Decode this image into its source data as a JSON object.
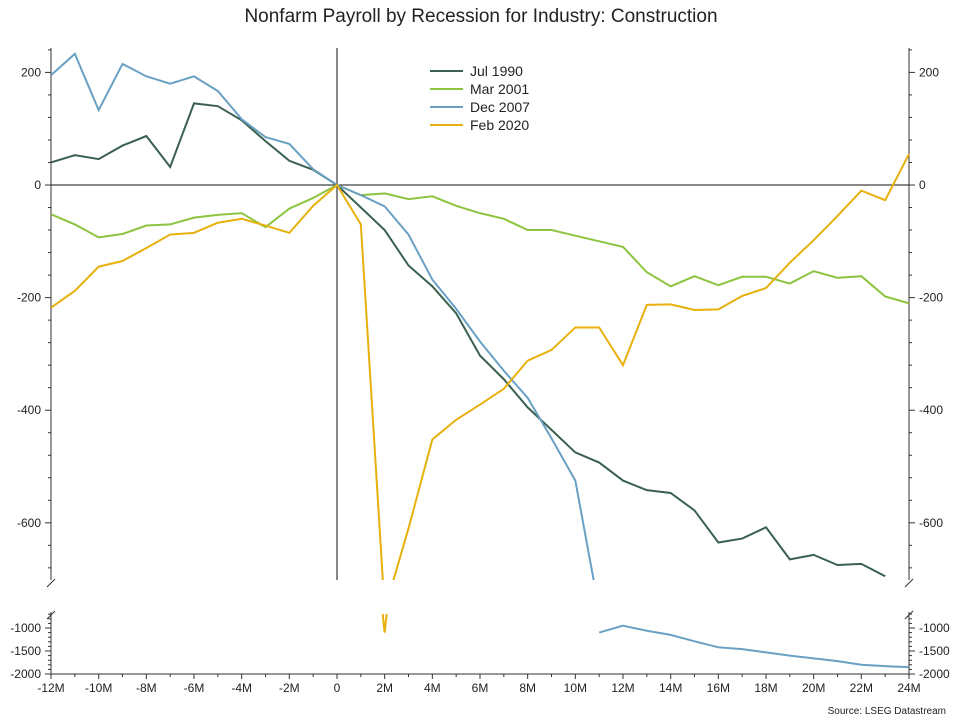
{
  "chart_data": {
    "type": "line",
    "title": "Nonfarm Payroll by Recession for Industry: Construction",
    "source": "Source: LSEG Datastream",
    "x": [
      -12,
      -11,
      -10,
      -9,
      -8,
      -7,
      -6,
      -5,
      -4,
      -3,
      -2,
      -1,
      0,
      1,
      2,
      3,
      4,
      5,
      6,
      7,
      8,
      9,
      10,
      11,
      12,
      13,
      14,
      15,
      16,
      17,
      18,
      19,
      20,
      21,
      22,
      23,
      24
    ],
    "x_tick_values": [
      -12,
      -10,
      -8,
      -6,
      -4,
      -2,
      0,
      2,
      4,
      6,
      8,
      10,
      12,
      14,
      16,
      18,
      20,
      22,
      24
    ],
    "x_tick_labels": [
      "-12M",
      "-10M",
      "-8M",
      "-6M",
      "-4M",
      "-2M",
      "0",
      "2M",
      "4M",
      "6M",
      "8M",
      "10M",
      "12M",
      "14M",
      "16M",
      "18M",
      "20M",
      "22M",
      "24M"
    ],
    "y_upper_ticks": [
      200,
      0,
      -200,
      -400,
      -600
    ],
    "y_upper_tick_labels": [
      "200",
      "0",
      "-200",
      "-400",
      "-600"
    ],
    "y_lower_ticks": [
      -1000,
      -1500,
      -2000
    ],
    "y_lower_tick_labels": [
      "-1000",
      "-1500",
      "-2000"
    ],
    "ylim_upper": [
      -700,
      245
    ],
    "ylim_lower": [
      -2000,
      -700
    ],
    "axis_break": true,
    "grid": false,
    "legend_position": "top-center",
    "series": [
      {
        "name": "Jul 1990",
        "color": "#3a6150",
        "values": [
          40,
          53,
          46,
          70,
          87,
          32,
          145,
          140,
          115,
          78,
          43,
          27,
          0,
          -40,
          -80,
          -143,
          -180,
          -228,
          -303,
          -345,
          -395,
          -435,
          -475,
          -493,
          -525,
          -542,
          -547,
          -578,
          -635,
          -628,
          -608,
          -665,
          -657,
          -675,
          -673,
          -695,
          null
        ]
      },
      {
        "name": "Mar 2001",
        "color": "#8cc43f",
        "values": [
          -52,
          -70,
          -93,
          -87,
          -72,
          -70,
          -58,
          -53,
          -50,
          -75,
          -42,
          -23,
          0,
          -18,
          -15,
          -25,
          -20,
          -37,
          -50,
          -60,
          -80,
          -80,
          -90,
          -100,
          -110,
          -155,
          -180,
          -162,
          -178,
          -163,
          -163,
          -175,
          -153,
          -165,
          -162,
          -198,
          -210
        ]
      },
      {
        "name": "Dec 2007",
        "color": "#6aa0c4",
        "values": [
          195,
          233,
          133,
          215,
          193,
          180,
          193,
          167,
          117,
          85,
          73,
          28,
          0,
          -18,
          -38,
          -88,
          -168,
          -220,
          -278,
          -330,
          -378,
          -450,
          -525,
          -1100,
          -950,
          -1060,
          -1150,
          -1290,
          -1420,
          -1460,
          -1530,
          -1600,
          -1660,
          -1720,
          -1800,
          -1830,
          -1850
        ]
      },
      {
        "name": "Feb 2020",
        "color": "#e8b00c",
        "values": [
          -218,
          -188,
          -145,
          -135,
          -112,
          -88,
          -85,
          -67,
          -60,
          -72,
          -85,
          -37,
          0,
          -70,
          -1100,
          -610,
          -452,
          -417,
          -390,
          -362,
          -312,
          -293,
          -253,
          -253,
          -320,
          -213,
          -212,
          -222,
          -221,
          -197,
          -183,
          -138,
          -98,
          -55,
          -10,
          -27,
          55
        ]
      }
    ]
  }
}
